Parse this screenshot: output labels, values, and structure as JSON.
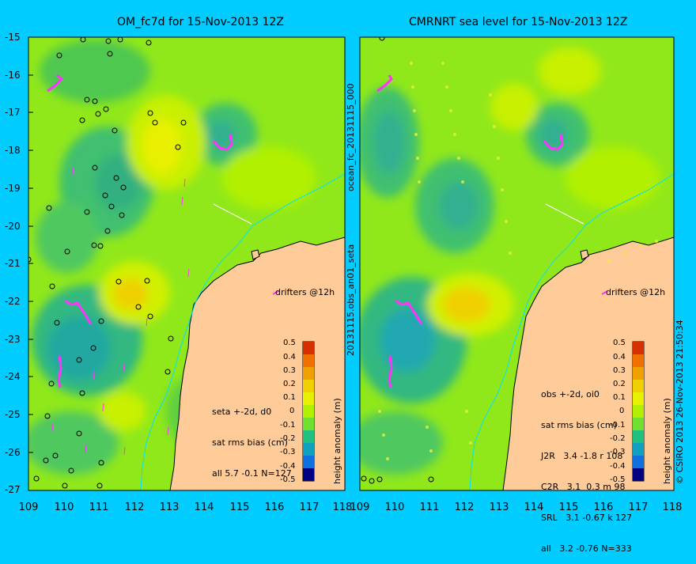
{
  "titles": {
    "left": "OM_fc7d for 15-Nov-2013 12Z",
    "right": "CMRNRT sea level  for 15-Nov-2013 12Z"
  },
  "y_ticks": [
    "-15",
    "-16",
    "-17",
    "-18",
    "-19",
    "-20",
    "-21",
    "-22",
    "-23",
    "-24",
    "-25",
    "-26",
    "-27"
  ],
  "x_ticks_left": [
    "109",
    "110",
    "111",
    "112",
    "113",
    "114",
    "115",
    "116",
    "117",
    "118"
  ],
  "x_ticks_right": [
    "109",
    "110",
    "111",
    "112",
    "113",
    "114",
    "115",
    "116",
    "117",
    "118"
  ],
  "divider_top": "ocean_fc_20131115_000",
  "divider_bottom": "20131115.obs_an01_seta",
  "drifters_label": "drifters @12h",
  "colorbar": {
    "title": "height anomaly (m)",
    "ticks": [
      "0.5",
      "0.4",
      "0.3",
      "0.2",
      "0.1",
      "0",
      "-0.1",
      "-0.2",
      "-0.3",
      "-0.4",
      "-0.5"
    ],
    "colors": [
      "#d73000",
      "#f07000",
      "#f0a000",
      "#f0d000",
      "#e6f000",
      "#b0f000",
      "#70e030",
      "#20c080",
      "#10a0c0",
      "#1070e0",
      "#1030c0",
      "#000080"
    ]
  },
  "stats_left": {
    "line1": "seta +-2d, d0",
    "line2": "sat rms bias (cm)",
    "line3": "all 5.7 -0.1 N=127"
  },
  "stats_right": {
    "line1": "obs +-2d, oi0",
    "line2": "sat rms bias (cm)",
    "line3": "J2R   3.4 -1.8 r 108",
    "line4": "C2R   3.1  0.3 m 98",
    "line5": "SRL   3.1 -0.67 k 127",
    "line6": "all   3.2 -0.76 N=333"
  },
  "credit": "© CSIRO 2013   26-Nov-2013 21:50:34",
  "colors": {
    "background": "#00ccff",
    "land": "#ffcc99",
    "sea_base": "#90e81a"
  },
  "map": {
    "lon_range": [
      109,
      118
    ],
    "lat_range": [
      -27,
      -15
    ]
  }
}
